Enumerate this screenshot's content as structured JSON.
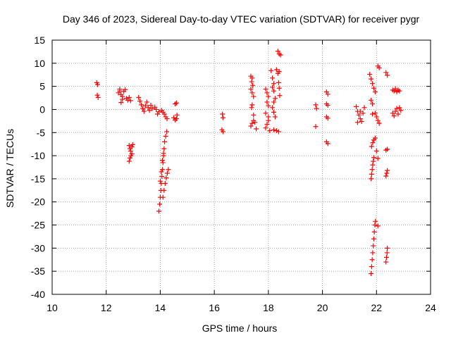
{
  "chart_data": {
    "type": "scatter",
    "title": "Day 346 of 2023, Sidereal Day-to-day VTEC variation (SDTVAR) for receiver pygr",
    "xlabel": "GPS time / hours",
    "ylabel": "SDTVAR / TECUs",
    "xlim": [
      10,
      24
    ],
    "ylim": [
      -40,
      15
    ],
    "xticks": [
      "10",
      "12",
      "14",
      "16",
      "18",
      "20",
      "22",
      "24"
    ],
    "yticks": [
      "-40",
      "-35",
      "-30",
      "-25",
      "-20",
      "-15",
      "-10",
      "-5",
      "0",
      "5",
      "10",
      "15"
    ],
    "grid": true,
    "marker": "+",
    "marker_color": "#ff0000",
    "series": [
      {
        "name": "SDTVAR",
        "points": [
          [
            11.65,
            5.8
          ],
          [
            11.68,
            5.4
          ],
          [
            11.67,
            3.1
          ],
          [
            11.7,
            2.6
          ],
          [
            12.45,
            3.6
          ],
          [
            12.5,
            4.0
          ],
          [
            12.55,
            3.2
          ],
          [
            12.6,
            2.8
          ],
          [
            12.65,
            3.9
          ],
          [
            12.7,
            4.3
          ],
          [
            12.75,
            2.4
          ],
          [
            12.8,
            2.0
          ],
          [
            12.85,
            2.6
          ],
          [
            12.9,
            1.9
          ],
          [
            12.55,
            1.5
          ],
          [
            12.6,
            2.2
          ],
          [
            12.5,
            4.4
          ],
          [
            12.85,
            -7.8
          ],
          [
            12.88,
            -8.5
          ],
          [
            12.9,
            -9.0
          ],
          [
            12.95,
            -8.1
          ],
          [
            12.98,
            -7.6
          ],
          [
            12.85,
            -11.2
          ],
          [
            12.88,
            -10.5
          ],
          [
            12.92,
            -10.0
          ],
          [
            12.95,
            -9.6
          ],
          [
            13.2,
            2.6
          ],
          [
            13.25,
            1.8
          ],
          [
            13.3,
            1.0
          ],
          [
            13.35,
            0.2
          ],
          [
            13.4,
            -0.4
          ],
          [
            13.45,
            0.8
          ],
          [
            13.5,
            1.6
          ],
          [
            13.55,
            0.4
          ],
          [
            13.6,
            -0.2
          ],
          [
            13.65,
            0.9
          ],
          [
            13.7,
            0.2
          ],
          [
            13.8,
            0.5
          ],
          [
            13.85,
            0.0
          ],
          [
            13.9,
            -1.0
          ],
          [
            13.95,
            -0.5
          ],
          [
            14.05,
            -0.2
          ],
          [
            14.1,
            -0.6
          ],
          [
            14.15,
            -1.0
          ],
          [
            14.2,
            -1.6
          ],
          [
            14.25,
            -2.0
          ],
          [
            13.95,
            -22.0
          ],
          [
            13.98,
            -20.5
          ],
          [
            14.0,
            -19.0
          ],
          [
            14.02,
            -17.5
          ],
          [
            14.04,
            -16.0
          ],
          [
            14.06,
            -14.5
          ],
          [
            14.08,
            -13.0
          ],
          [
            14.1,
            -11.5
          ],
          [
            14.12,
            -10.0
          ],
          [
            14.14,
            -8.5
          ],
          [
            14.16,
            -7.0
          ],
          [
            14.2,
            -5.8
          ],
          [
            14.24,
            -4.8
          ],
          [
            14.0,
            -15.5
          ],
          [
            14.04,
            -13.5
          ],
          [
            14.08,
            -11.0
          ],
          [
            14.12,
            -9.5
          ],
          [
            14.1,
            -19.0
          ],
          [
            14.14,
            -17.5
          ],
          [
            14.18,
            -16.0
          ],
          [
            14.22,
            -14.8
          ],
          [
            14.26,
            -13.8
          ],
          [
            14.3,
            -13.0
          ],
          [
            14.5,
            -1.8
          ],
          [
            14.55,
            -2.3
          ],
          [
            14.6,
            -2.0
          ],
          [
            14.62,
            -1.2
          ],
          [
            14.55,
            1.2
          ],
          [
            14.6,
            1.4
          ],
          [
            16.3,
            -1.0
          ],
          [
            16.32,
            -1.8
          ],
          [
            16.28,
            -4.4
          ],
          [
            16.32,
            -4.8
          ],
          [
            17.35,
            7.2
          ],
          [
            17.4,
            6.8
          ],
          [
            17.38,
            6.0
          ],
          [
            17.42,
            5.2
          ],
          [
            17.35,
            4.4
          ],
          [
            17.4,
            3.6
          ],
          [
            17.45,
            2.8
          ],
          [
            17.4,
            1.0
          ],
          [
            17.38,
            0.4
          ],
          [
            17.35,
            -3.6
          ],
          [
            17.4,
            -3.0
          ],
          [
            17.45,
            -2.4
          ],
          [
            17.5,
            -2.8
          ],
          [
            17.55,
            -4.2
          ],
          [
            17.45,
            -1.2
          ],
          [
            17.9,
            4.4
          ],
          [
            17.95,
            3.6
          ],
          [
            18.0,
            2.8
          ],
          [
            17.95,
            1.6
          ],
          [
            18.0,
            0.8
          ],
          [
            17.9,
            -0.8
          ],
          [
            18.0,
            -1.6
          ],
          [
            17.9,
            -4.0
          ],
          [
            17.95,
            -3.2
          ],
          [
            18.0,
            -2.4
          ],
          [
            18.05,
            -4.6
          ],
          [
            18.1,
            8.4
          ],
          [
            18.15,
            6.8
          ],
          [
            18.2,
            5.6
          ],
          [
            18.15,
            4.8
          ],
          [
            18.2,
            4.0
          ],
          [
            18.25,
            2.4
          ],
          [
            18.2,
            1.6
          ],
          [
            18.15,
            0.4
          ],
          [
            18.2,
            -0.6
          ],
          [
            18.25,
            -1.6
          ],
          [
            18.2,
            -4.4
          ],
          [
            18.3,
            -4.6
          ],
          [
            18.38,
            -4.8
          ],
          [
            18.3,
            8.6
          ],
          [
            18.35,
            7.8
          ],
          [
            18.4,
            8.2
          ],
          [
            18.38,
            5.8
          ],
          [
            18.4,
            4.6
          ],
          [
            18.42,
            3.0
          ],
          [
            18.35,
            12.6
          ],
          [
            18.4,
            12.0
          ],
          [
            18.45,
            11.8
          ],
          [
            19.75,
            1.0
          ],
          [
            19.78,
            0.2
          ],
          [
            19.75,
            -3.7
          ],
          [
            20.15,
            3.8
          ],
          [
            20.2,
            3.3
          ],
          [
            20.15,
            1.2
          ],
          [
            20.2,
            0.9
          ],
          [
            20.15,
            -1.6
          ],
          [
            20.2,
            -1.9
          ],
          [
            20.15,
            -7.0
          ],
          [
            20.2,
            -7.4
          ],
          [
            21.25,
            0.6
          ],
          [
            21.3,
            -0.4
          ],
          [
            21.35,
            -1.2
          ],
          [
            21.4,
            -2.0
          ],
          [
            21.45,
            -2.6
          ],
          [
            21.5,
            -0.8
          ],
          [
            21.55,
            0.4
          ],
          [
            21.3,
            -2.8
          ],
          [
            21.4,
            -0.4
          ],
          [
            21.75,
            7.6
          ],
          [
            21.8,
            6.6
          ],
          [
            21.85,
            5.6
          ],
          [
            21.9,
            4.6
          ],
          [
            21.95,
            3.8
          ],
          [
            21.8,
            2.0
          ],
          [
            21.85,
            1.2
          ],
          [
            21.95,
            -0.8
          ],
          [
            22.0,
            -1.6
          ],
          [
            22.05,
            -2.4
          ],
          [
            22.1,
            -3.0
          ],
          [
            21.85,
            -1.0
          ],
          [
            21.8,
            -15.0
          ],
          [
            21.82,
            -14.0
          ],
          [
            21.84,
            -13.0
          ],
          [
            21.86,
            -12.0
          ],
          [
            21.88,
            -11.2
          ],
          [
            21.9,
            -10.4
          ],
          [
            21.82,
            -8.0
          ],
          [
            21.86,
            -7.2
          ],
          [
            21.9,
            -6.6
          ],
          [
            21.95,
            -6.2
          ],
          [
            22.0,
            -9.0
          ],
          [
            22.05,
            -10.6
          ],
          [
            21.8,
            -35.5
          ],
          [
            21.82,
            -34.0
          ],
          [
            21.84,
            -32.5
          ],
          [
            21.86,
            -31.0
          ],
          [
            21.88,
            -29.5
          ],
          [
            21.9,
            -28.0
          ],
          [
            21.92,
            -26.5
          ],
          [
            21.94,
            -25.0
          ],
          [
            21.96,
            -24.2
          ],
          [
            22.05,
            -25.2
          ],
          [
            22.05,
            9.4
          ],
          [
            22.1,
            9.0
          ],
          [
            22.35,
            8.0
          ],
          [
            22.4,
            7.4
          ],
          [
            22.35,
            -8.8
          ],
          [
            22.4,
            -8.6
          ],
          [
            22.35,
            -14.4
          ],
          [
            22.38,
            -13.8
          ],
          [
            22.4,
            -13.2
          ],
          [
            22.35,
            -33.0
          ],
          [
            22.37,
            -32.0
          ],
          [
            22.39,
            -31.0
          ],
          [
            22.4,
            -30.0
          ],
          [
            22.6,
            4.2
          ],
          [
            22.65,
            4.0
          ],
          [
            22.7,
            4.5
          ],
          [
            22.75,
            3.8
          ],
          [
            22.8,
            4.2
          ],
          [
            22.85,
            4.0
          ],
          [
            22.6,
            -0.8
          ],
          [
            22.65,
            -1.4
          ],
          [
            22.7,
            -0.4
          ],
          [
            22.75,
            0.2
          ],
          [
            22.8,
            -1.0
          ],
          [
            22.85,
            0.4
          ],
          [
            22.9,
            -0.2
          ]
        ]
      }
    ]
  }
}
